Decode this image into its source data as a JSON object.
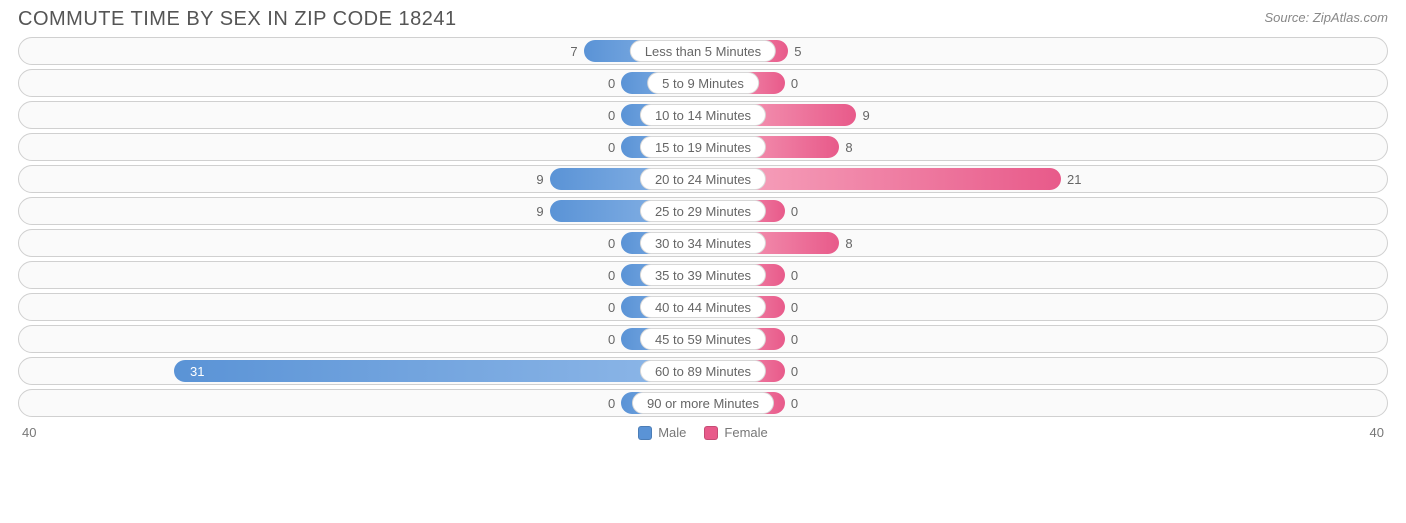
{
  "title": "COMMUTE TIME BY SEX IN ZIP CODE 18241",
  "source": "Source: ZipAtlas.com",
  "axis_max": 40,
  "axis_left_label": "40",
  "axis_right_label": "40",
  "min_bar_default": 3,
  "colors": {
    "male_start": "#8fb8e8",
    "male_end": "#5a93d6",
    "female_start": "#f7a8c0",
    "female_end": "#e85a8a",
    "row_border": "#d0d0d0",
    "row_bg": "#fafafa",
    "text": "#666666",
    "title_text": "#555555",
    "source_text": "#888888"
  },
  "legend": {
    "male": "Male",
    "female": "Female"
  },
  "rows": [
    {
      "category": "Less than 5 Minutes",
      "male": 7,
      "female": 5
    },
    {
      "category": "5 to 9 Minutes",
      "male": 0,
      "female": 0
    },
    {
      "category": "10 to 14 Minutes",
      "male": 0,
      "female": 9
    },
    {
      "category": "15 to 19 Minutes",
      "male": 0,
      "female": 8
    },
    {
      "category": "20 to 24 Minutes",
      "male": 9,
      "female": 21
    },
    {
      "category": "25 to 29 Minutes",
      "male": 9,
      "female": 0
    },
    {
      "category": "30 to 34 Minutes",
      "male": 0,
      "female": 8
    },
    {
      "category": "35 to 39 Minutes",
      "male": 0,
      "female": 0
    },
    {
      "category": "40 to 44 Minutes",
      "male": 0,
      "female": 0
    },
    {
      "category": "45 to 59 Minutes",
      "male": 0,
      "female": 0
    },
    {
      "category": "60 to 89 Minutes",
      "male": 31,
      "female": 0
    },
    {
      "category": "90 or more Minutes",
      "male": 0,
      "female": 0
    }
  ]
}
